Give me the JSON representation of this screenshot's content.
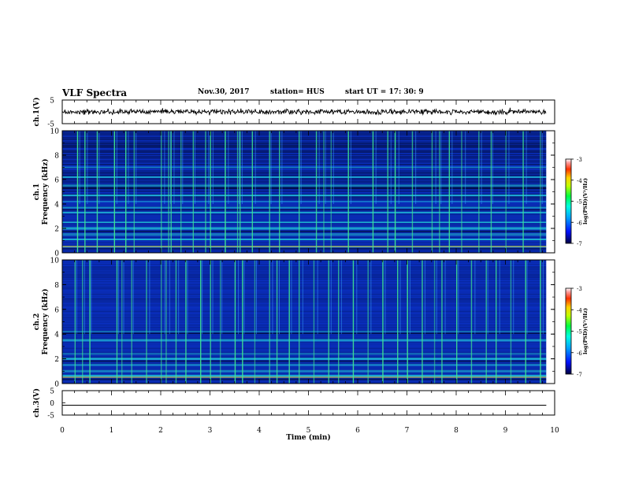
{
  "header": {
    "title": "VLF Spectra",
    "date": "Nov.30, 2017",
    "station": "station= HUS",
    "start": "start UT =  17: 30: 9"
  },
  "chart_data": [
    {
      "type": "line",
      "name": "ch1-waveform",
      "ylabel": "ch.1(V)",
      "ylim": [
        -5,
        5
      ],
      "y_ticks": [
        "5",
        "-5"
      ],
      "baseline": 0
    },
    {
      "type": "heatmap",
      "name": "ch1-spectrogram",
      "ylabel_channel": "ch.1",
      "ylabel": "Frequency (kHz)",
      "ylim": [
        0,
        10
      ],
      "y_ticks": [
        "0",
        "2",
        "4",
        "6",
        "8",
        "10"
      ],
      "colorbar": {
        "label": "log(PSD)(V²/Hz)",
        "range": [
          -7,
          -3
        ],
        "ticks": [
          "-3",
          "-4",
          "-5",
          "-6",
          "-7"
        ]
      },
      "bands_khz": [
        0.5,
        1.1,
        1.5,
        2.0,
        2.5,
        3.3,
        3.7,
        4.2,
        4.7,
        5.5,
        6.2,
        7.0
      ],
      "vertical_events_min": [
        0.3,
        0.45,
        0.7,
        1.05,
        1.28,
        1.45,
        2.0,
        2.15,
        2.2,
        2.4,
        2.65,
        2.9,
        3.0,
        3.3,
        3.55,
        3.6,
        3.85,
        4.2,
        4.4,
        4.8,
        5.15,
        5.3,
        5.45,
        5.8,
        6.3,
        6.6,
        6.75,
        7.1,
        7.5,
        7.65,
        7.85,
        8.1,
        8.45,
        8.7,
        9.0,
        9.35,
        9.7
      ]
    },
    {
      "type": "heatmap",
      "name": "ch2-spectrogram",
      "ylabel_channel": "ch.2",
      "ylabel": "Frequency (kHz)",
      "ylim": [
        0,
        10
      ],
      "y_ticks": [
        "0",
        "2",
        "4",
        "6",
        "8",
        "10"
      ],
      "colorbar": {
        "label": "log(PSD)(V²/Hz)",
        "range": [
          -7,
          -3
        ],
        "ticks": [
          "-3",
          "-4",
          "-5",
          "-6",
          "-7"
        ]
      },
      "bands_khz": [
        0.6,
        1.0,
        1.5,
        2.0,
        2.4,
        3.5,
        4.2
      ],
      "vertical_events_min": [
        0.25,
        0.4,
        0.55,
        1.1,
        1.2,
        1.4,
        1.7,
        2.0,
        2.1,
        2.3,
        2.5,
        2.8,
        3.0,
        3.2,
        3.5,
        3.65,
        3.9,
        4.2,
        4.35,
        4.6,
        4.8,
        5.1,
        5.4,
        5.6,
        5.9,
        6.2,
        6.5,
        6.8,
        7.0,
        7.3,
        7.55,
        7.7,
        8.0,
        8.3,
        8.6,
        8.8,
        9.1,
        9.4,
        9.7
      ]
    },
    {
      "type": "line",
      "name": "ch3-waveform",
      "ylabel": "ch.3(V)",
      "ylim": [
        -5,
        5
      ],
      "y_ticks": [
        "5",
        "0",
        "-5"
      ],
      "baseline": 0
    }
  ],
  "x_axis": {
    "label": "Time (min)",
    "range": [
      0,
      10
    ],
    "data_end": 9.83,
    "ticks": [
      "0",
      "1",
      "2",
      "3",
      "4",
      "5",
      "6",
      "7",
      "8",
      "9",
      "10"
    ]
  },
  "colors": {
    "background_dark": "#000a2a",
    "noise_base": "#0a2fbf",
    "band": "#22d0e0",
    "event": "#40e890",
    "hot": "#ffb020"
  }
}
